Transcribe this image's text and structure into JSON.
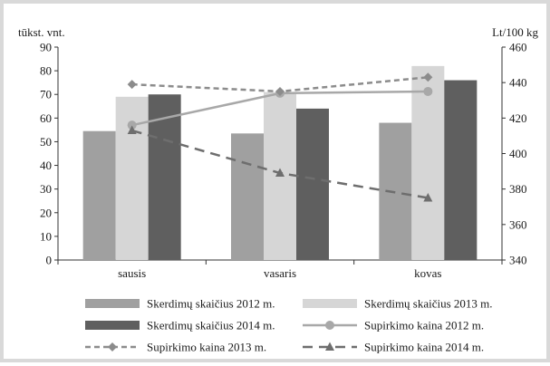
{
  "chart_data": {
    "type": "bar",
    "left_axis_label": "tūkst. vnt.",
    "right_axis_label": "Lt/100 kg",
    "categories": [
      "sausis",
      "vasaris",
      "kovas"
    ],
    "y_left": {
      "min": 0,
      "max": 90,
      "step": 10,
      "ticks": [
        "0",
        "10",
        "20",
        "30",
        "40",
        "50",
        "60",
        "70",
        "80",
        "90"
      ]
    },
    "y_right": {
      "min": 340,
      "max": 460,
      "step": 20,
      "ticks": [
        "340",
        "360",
        "380",
        "400",
        "420",
        "440",
        "460"
      ]
    },
    "grid": false,
    "legend_position": "bottom",
    "bar_series": [
      {
        "name": "Skerdimų skaičius 2012 m.",
        "values": [
          54.5,
          53.5,
          58
        ],
        "color": "#a0a0a0"
      },
      {
        "name": "Skerdimų skaičius 2013 m.",
        "values": [
          69,
          71,
          82
        ],
        "color": "#d6d6d6"
      },
      {
        "name": "Skerdimų skaičius 2014 m.",
        "values": [
          70,
          64,
          76
        ],
        "color": "#5f5f5f"
      }
    ],
    "line_series": [
      {
        "name": "Supirkimo kaina 2012 m.",
        "axis": "right",
        "values": [
          416,
          434,
          435
        ],
        "color": "#a8a8a8",
        "marker": "circle",
        "dash": "solid"
      },
      {
        "name": "Supirkimo kaina 2013 m.",
        "axis": "right",
        "values": [
          439,
          435,
          443
        ],
        "color": "#8c8c8c",
        "marker": "diamond",
        "dash": "short"
      },
      {
        "name": "Supirkimo kaina 2014 m.",
        "axis": "right",
        "values": [
          413,
          389,
          375
        ],
        "color": "#6e6e6e",
        "marker": "triangle",
        "dash": "long"
      }
    ]
  }
}
